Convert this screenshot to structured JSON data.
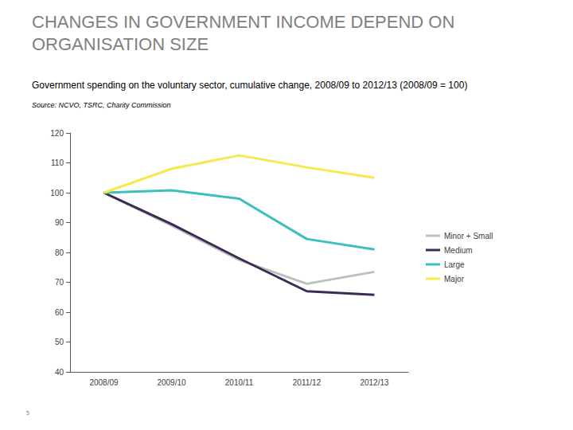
{
  "chart_data": {
    "type": "line",
    "title": "CHANGES IN GOVERNMENT INCOME DEPEND ON ORGANISATION SIZE",
    "subtitle": "Government spending on the voluntary sector, cumulative change, 2008/09 to 2012/13 (2008/09 = 100)",
    "source": "Source: NCVO, TSRC, Charity Commission",
    "page_number": "5",
    "categories": [
      "2008/09",
      "2009/10",
      "2010/11",
      "2011/12",
      "2012/13"
    ],
    "series": [
      {
        "name": "Minor + Small",
        "color": "#bfbfbf",
        "values": [
          100,
          89,
          77.5,
          69.5,
          73.5
        ]
      },
      {
        "name": "Medium",
        "color": "#3d2b56",
        "values": [
          100,
          89.5,
          78,
          67,
          65.8
        ]
      },
      {
        "name": "Large",
        "color": "#3bbfbf",
        "values": [
          100,
          100.8,
          98,
          84.5,
          81
        ]
      },
      {
        "name": "Major",
        "color": "#f5e94b",
        "values": [
          100,
          108,
          112.5,
          108.5,
          105
        ]
      }
    ],
    "ylim": [
      40,
      120
    ],
    "yticks": [
      40,
      50,
      60,
      70,
      80,
      90,
      100,
      110,
      120
    ],
    "grid": false,
    "legend": "right"
  }
}
